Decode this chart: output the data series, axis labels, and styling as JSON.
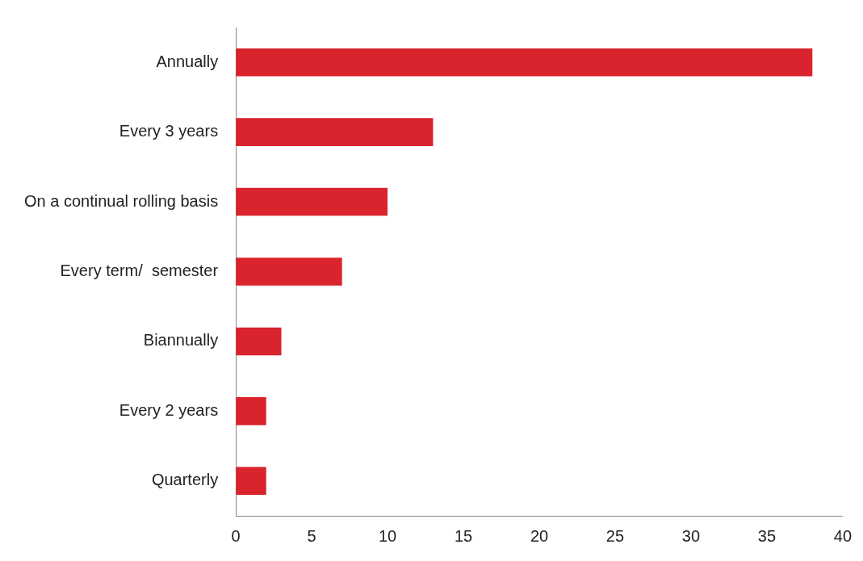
{
  "chart_data": {
    "type": "bar",
    "orientation": "horizontal",
    "categories": [
      "Annually",
      "Every 3 years",
      "On a continual rolling basis",
      "Every term/  semester",
      "Biannually",
      "Every 2 years",
      "Quarterly"
    ],
    "values": [
      38,
      13,
      10,
      7,
      3,
      2,
      2
    ],
    "color": "#d9232d",
    "xlim": [
      0,
      40
    ],
    "xticks": [
      0,
      5,
      10,
      15,
      20,
      25,
      30,
      35,
      40
    ],
    "grid": false,
    "legend": false
  }
}
